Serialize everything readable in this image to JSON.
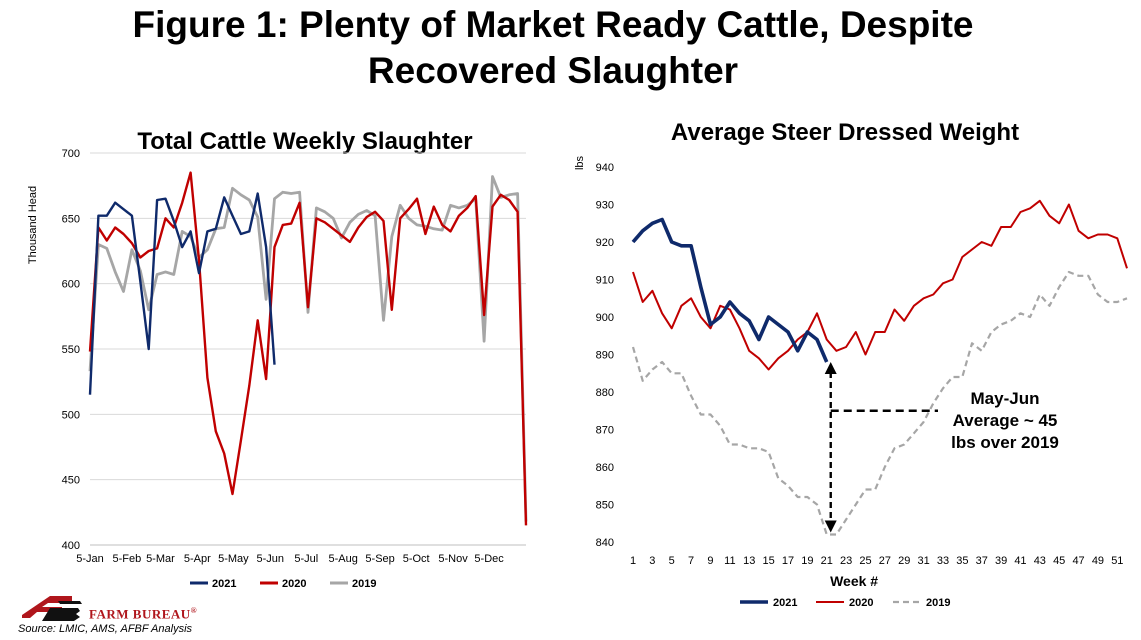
{
  "title": "Figure 1: Plenty of Market Ready Cattle, Despite Recovered Slaughter",
  "title_line1": "Figure 1: Plenty of Market Ready Cattle, Despite",
  "title_line2": "Recovered Slaughter",
  "source": "Source: LMIC, AMS, AFBF Analysis",
  "logo": {
    "text": "FARM BUREAU",
    "mark": "®"
  },
  "colors": {
    "c2021": "#0f2a6b",
    "c2020": "#c00000",
    "c2019": "#a6a6a6",
    "grid": "#d9d9d9"
  },
  "chart_data": [
    {
      "type": "line",
      "title": "Total Cattle Weekly Slaughter",
      "ylabel": "Thousand Head",
      "xlabel": "",
      "ylim": [
        400,
        700
      ],
      "yticks": [
        400,
        450,
        500,
        550,
        600,
        650,
        700
      ],
      "grid": true,
      "legend_position": "bottom",
      "x_tick_labels": [
        "5-Jan",
        "5-Feb",
        "5-Mar",
        "5-Apr",
        "5-May",
        "5-Jun",
        "5-Jul",
        "5-Aug",
        "5-Sep",
        "5-Oct",
        "5-Nov",
        "5-Dec"
      ],
      "x_tick_weeks": [
        1,
        5.4,
        9.4,
        13.8,
        18.1,
        22.5,
        26.8,
        31.2,
        35.6,
        39.9,
        44.3,
        48.6
      ],
      "n_weeks": 53,
      "series": [
        {
          "name": "2021",
          "values": [
            515,
            652,
            652,
            662,
            657,
            652,
            602,
            550,
            664,
            665,
            648,
            628,
            640,
            608,
            640,
            642,
            666,
            652,
            638,
            640,
            669,
            628,
            538
          ]
        },
        {
          "name": "2020",
          "values": [
            548,
            643,
            633,
            643,
            638,
            631,
            620,
            625,
            627,
            650,
            643,
            662,
            685,
            618,
            528,
            487,
            470,
            439,
            480,
            522,
            572,
            527,
            628,
            645,
            646,
            662,
            582,
            650,
            647,
            642,
            637,
            632,
            643,
            651,
            655,
            648,
            580,
            650,
            657,
            665,
            638,
            659,
            645,
            640,
            652,
            658,
            667,
            576,
            659,
            668,
            664,
            655,
            415
          ]
        },
        {
          "name": "2019",
          "values": [
            533,
            630,
            627,
            609,
            594,
            626,
            610,
            580,
            607,
            609,
            607,
            640,
            636,
            620,
            626,
            642,
            643,
            673,
            668,
            664,
            651,
            588,
            665,
            670,
            669,
            670,
            578,
            658,
            655,
            650,
            635,
            647,
            653,
            656,
            652,
            572,
            636,
            660,
            650,
            645,
            644,
            642,
            641,
            660,
            658,
            660,
            665,
            556,
            682,
            666,
            668,
            669,
            418
          ]
        }
      ]
    },
    {
      "type": "line",
      "title": "Average Steer Dressed Weight",
      "ylabel": "lbs",
      "xlabel": "Week #",
      "ylim": [
        840,
        940
      ],
      "yticks": [
        840,
        850,
        860,
        870,
        880,
        890,
        900,
        910,
        920,
        930,
        940
      ],
      "x_tick_labels": [
        "1",
        "3",
        "5",
        "7",
        "9",
        "11",
        "13",
        "15",
        "17",
        "19",
        "21",
        "23",
        "25",
        "27",
        "29",
        "31",
        "33",
        "35",
        "37",
        "39",
        "41",
        "43",
        "45",
        "47",
        "49",
        "51"
      ],
      "grid": false,
      "legend_position": "bottom",
      "n_weeks": 52,
      "series": [
        {
          "name": "2021",
          "values": [
            920,
            923,
            925,
            926,
            920,
            919,
            919,
            908,
            898,
            900,
            904,
            901,
            899,
            894,
            900,
            898,
            896,
            891,
            896,
            894,
            888
          ]
        },
        {
          "name": "2020",
          "values": [
            912,
            904,
            907,
            901,
            897,
            903,
            905,
            900,
            897,
            903,
            902,
            897,
            891,
            889,
            886,
            889,
            891,
            894,
            896,
            901,
            894,
            891,
            892,
            896,
            890,
            896,
            896,
            902,
            899,
            903,
            905,
            906,
            909,
            910,
            916,
            918,
            920,
            919,
            924,
            924,
            928,
            929,
            931,
            927,
            925,
            930,
            923,
            921,
            922,
            922,
            921,
            913
          ]
        },
        {
          "name": "2019",
          "values": [
            892,
            883,
            886,
            888,
            885,
            885,
            879,
            874,
            874,
            871,
            866,
            866,
            865,
            865,
            864,
            857,
            855,
            852,
            852,
            850,
            842,
            842,
            846,
            850,
            854,
            854,
            860,
            865,
            866,
            869,
            872,
            877,
            881,
            884,
            884,
            893,
            891,
            896,
            898,
            899,
            901,
            900,
            906,
            903,
            908,
            912,
            911,
            911,
            906,
            904,
            904,
            905
          ]
        }
      ],
      "annotation": {
        "lines": [
          "May-Jun",
          "Average ~ 45",
          "lbs over 2019"
        ],
        "arrow_week": 21,
        "arrow_from": 842,
        "arrow_to": 888
      }
    }
  ]
}
